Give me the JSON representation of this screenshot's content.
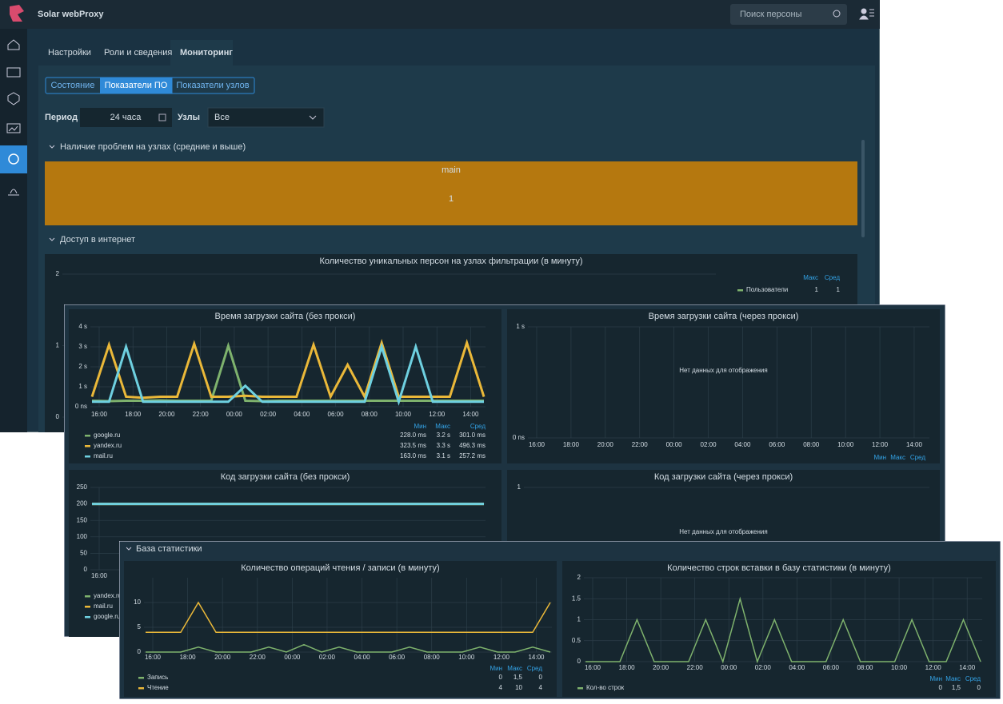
{
  "app": {
    "brand": "Solar webProxy",
    "search_placeholder": "Поиск персоны",
    "tabs": [
      "Настройки",
      "Роли и сведения",
      "Мониторинг"
    ],
    "subtabs": [
      "Состояние",
      "Показатели ПО",
      "Показатели узлов"
    ],
    "filters": {
      "period_label": "Период",
      "period_value": "24 часа",
      "nodes_label": "Узлы",
      "nodes_value": "Все"
    },
    "section_problems": {
      "title": "Наличие проблем на узлах (средние и выше)",
      "tile_label": "main",
      "tile_value": 1
    },
    "section_internet": {
      "title": "Доступ в интернет"
    },
    "chart_users": {
      "title": "Количество уникальных персон на узлах фильтрации (в минуту)",
      "ylim": [
        0,
        2
      ],
      "yticks": [
        0,
        1,
        2
      ],
      "xticks": [],
      "legend": {
        "headers": [
          "Макс",
          "Сред"
        ],
        "rows": [
          {
            "name": "Пользователи",
            "color": "#7eb26d",
            "stats": [
              "1",
              "1"
            ]
          }
        ]
      }
    }
  },
  "charts_window": {
    "load_direct": {
      "title": "Время загрузки сайта (без прокси)",
      "ylim": [
        0,
        4
      ],
      "yticks": [
        {
          "value": 0,
          "label": "0 ns"
        },
        {
          "value": 1,
          "label": "1 s"
        },
        {
          "value": 2,
          "label": "2 s"
        },
        {
          "value": 3,
          "label": "3 s"
        },
        {
          "value": 4,
          "label": "4 s"
        }
      ],
      "xticks": [
        "16:00",
        "18:00",
        "20:00",
        "22:00",
        "00:00",
        "02:00",
        "04:00",
        "06:00",
        "08:00",
        "10:00",
        "12:00",
        "14:00"
      ],
      "series": [
        {
          "name": "google.ru",
          "color": "#7eb26d",
          "values": [
            0.3,
            0.28,
            0.3,
            0.3,
            0.32,
            0.3,
            0.3,
            0.3,
            3.05,
            0.3,
            0.28,
            0.3,
            0.3,
            0.3,
            0.3,
            0.3,
            0.3,
            0.3,
            0.3,
            0.3,
            0.3,
            0.3,
            0.3,
            0.3
          ]
        },
        {
          "name": "yandex.ru",
          "color": "#eab839",
          "values": [
            0.5,
            3.1,
            0.5,
            0.45,
            0.5,
            0.5,
            3.15,
            0.5,
            0.5,
            0.55,
            0.5,
            0.5,
            0.5,
            3.1,
            0.5,
            2.1,
            0.5,
            3.2,
            0.5,
            0.5,
            0.5,
            0.5,
            3.2,
            0.5
          ]
        },
        {
          "name": "mail.ru",
          "color": "#6ed0e0",
          "values": [
            0.25,
            0.25,
            3.0,
            0.25,
            0.25,
            0.25,
            0.25,
            0.25,
            0.25,
            1.05,
            0.25,
            0.25,
            0.25,
            0.25,
            0.25,
            0.25,
            0.25,
            3.0,
            0.25,
            3.0,
            0.25,
            0.25,
            0.25,
            0.25
          ]
        }
      ],
      "legend": {
        "headers": [
          "Мин",
          "Макс",
          "Сред"
        ],
        "rows": [
          {
            "name": "google.ru",
            "color": "#7eb26d",
            "stats": [
              "228.0 ms",
              "3.2 s",
              "301.0 ms"
            ]
          },
          {
            "name": "yandex.ru",
            "color": "#eab839",
            "stats": [
              "323.5 ms",
              "3.3 s",
              "496.3 ms"
            ]
          },
          {
            "name": "mail.ru",
            "color": "#6ed0e0",
            "stats": [
              "163.0 ms",
              "3.1 s",
              "257.2 ms"
            ]
          }
        ]
      }
    },
    "load_proxy": {
      "title": "Время загрузки сайта (через прокси)",
      "ylim": [
        0,
        1
      ],
      "yticks": [
        {
          "value": 0,
          "label": "0 ns"
        },
        {
          "value": 1,
          "label": "1 s"
        }
      ],
      "xticks": [
        "16:00",
        "18:00",
        "20:00",
        "22:00",
        "00:00",
        "02:00",
        "04:00",
        "06:00",
        "08:00",
        "10:00",
        "12:00",
        "14:00"
      ],
      "no_data": "Нет данных для отображения",
      "legend": {
        "headers": [
          "Мин",
          "Макс",
          "Сред"
        ],
        "rows": []
      }
    },
    "code_direct": {
      "title": "Код загрузки сайта (без прокси)",
      "ylim": [
        0,
        250
      ],
      "yticks": [
        0,
        50,
        100,
        150,
        200,
        250
      ],
      "xticks": [
        "16:00"
      ],
      "series": [
        {
          "name": "yandex.ru",
          "color": "#7eb26d",
          "values": [
            200,
            200,
            200,
            200,
            200,
            200,
            200,
            200,
            200,
            200,
            200,
            200,
            200,
            200,
            200,
            200,
            200,
            200,
            200,
            200,
            200,
            200,
            200,
            200
          ]
        },
        {
          "name": "mail.ru",
          "color": "#eab839",
          "values": [
            200,
            200,
            200,
            200,
            200,
            200,
            200,
            200,
            200,
            200,
            200,
            200,
            200,
            200,
            200,
            200,
            200,
            200,
            200,
            200,
            200,
            200,
            200,
            200
          ]
        },
        {
          "name": "google.ru",
          "color": "#6ed0e0",
          "values": [
            200,
            200,
            200,
            200,
            200,
            200,
            200,
            200,
            200,
            200,
            200,
            200,
            200,
            200,
            200,
            200,
            200,
            200,
            200,
            200,
            200,
            200,
            200,
            200
          ]
        }
      ],
      "legend": {
        "headers": [],
        "rows": [
          {
            "name": "yandex.ru",
            "color": "#7eb26d",
            "stats": []
          },
          {
            "name": "mail.ru",
            "color": "#eab839",
            "stats": []
          },
          {
            "name": "google.ru",
            "color": "#6ed0e0",
            "stats": []
          }
        ]
      }
    },
    "code_proxy": {
      "title": "Код загрузки сайта (через прокси)",
      "ylim": [
        0,
        1
      ],
      "yticks": [
        1
      ],
      "xticks": [],
      "no_data": "Нет данных для отображения"
    }
  },
  "stats_window": {
    "title": "База статистики",
    "ops": {
      "title": "Количество операций чтения / записи (в минуту)",
      "ylim": [
        0,
        15
      ],
      "yticks": [
        0,
        5,
        10
      ],
      "xticks": [
        "16:00",
        "18:00",
        "20:00",
        "22:00",
        "00:00",
        "02:00",
        "04:00",
        "06:00",
        "08:00",
        "10:00",
        "12:00",
        "14:00"
      ],
      "series": [
        {
          "name": "Запись",
          "color": "#7eb26d",
          "values": [
            0,
            0,
            0,
            1,
            0,
            0,
            0,
            1,
            0,
            1.5,
            0,
            1,
            0,
            0,
            0,
            1,
            0,
            0,
            0,
            1,
            0,
            0,
            1,
            0
          ]
        },
        {
          "name": "Чтение",
          "color": "#eab839",
          "values": [
            4,
            4,
            4,
            10,
            4,
            4,
            4,
            4,
            4,
            4,
            4,
            4,
            4,
            4,
            4,
            4,
            4,
            4,
            4,
            4,
            4,
            4,
            4,
            10
          ]
        }
      ],
      "legend": {
        "headers": [
          "Мин",
          "Макс",
          "Сред"
        ],
        "rows": [
          {
            "name": "Запись",
            "color": "#7eb26d",
            "stats": [
              "0",
              "1,5",
              "0"
            ]
          },
          {
            "name": "Чтение",
            "color": "#eab839",
            "stats": [
              "4",
              "10",
              "4"
            ]
          }
        ]
      }
    },
    "rows": {
      "title": "Количество строк вставки в базу статистики (в минуту)",
      "ylim": [
        0,
        2
      ],
      "yticks": [
        0,
        0.5,
        1,
        1.5,
        2
      ],
      "xticks": [
        "16:00",
        "18:00",
        "20:00",
        "22:00",
        "00:00",
        "02:00",
        "04:00",
        "06:00",
        "08:00",
        "10:00",
        "12:00",
        "14:00"
      ],
      "series": [
        {
          "name": "Кол-во строк",
          "color": "#7eb26d",
          "values": [
            0,
            0,
            0,
            1,
            0,
            0,
            0,
            1,
            0,
            1.5,
            0,
            1,
            0,
            0,
            0,
            1,
            0,
            0,
            0,
            1,
            0,
            0,
            1,
            0
          ]
        }
      ],
      "legend": {
        "headers": [
          "Мин",
          "Макс",
          "Сред"
        ],
        "rows": [
          {
            "name": "Кол-во строк",
            "color": "#7eb26d",
            "stats": [
              "0",
              "1,5",
              "0"
            ]
          }
        ]
      }
    }
  }
}
